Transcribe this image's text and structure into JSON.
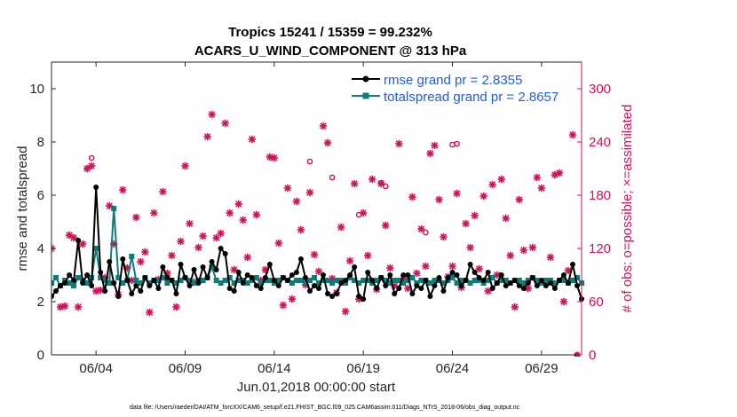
{
  "chart_data": {
    "type": "line",
    "title_line1": "Tropics 15241 / 15359 = 99.232%",
    "title_line2": "ACARS_U_WIND_COMPONENT @ 313 hPa",
    "xlabel": "Jun.01,2018 00:00:00 start",
    "ylabel_left": "rmse and totalspread",
    "ylabel_right": "# of obs: o=possible; ×=assimilated",
    "footnote": "data file: /Users/raeder/DAI/ATM_forcXX/CAM6_setup/f.e21.FHIST_BGC.f09_025.CAM6assim.011/Diags_NTrS_2018-06/obs_diag_output.nc",
    "xlim": [
      1.5,
      31.25
    ],
    "ylim_left": [
      0,
      11
    ],
    "ylim_right": [
      0,
      330
    ],
    "x_ticks": [
      {
        "x": 4,
        "label": "06/04"
      },
      {
        "x": 9,
        "label": "06/09"
      },
      {
        "x": 14,
        "label": "06/14"
      },
      {
        "x": 19,
        "label": "06/19"
      },
      {
        "x": 24,
        "label": "06/24"
      },
      {
        "x": 29,
        "label": "06/29"
      }
    ],
    "y_ticks_left": [
      "0",
      "2",
      "4",
      "6",
      "8",
      "10"
    ],
    "y_ticks_right": [
      "0",
      "60",
      "120",
      "180",
      "240",
      "300"
    ],
    "colors": {
      "rmse": "#000000",
      "spread": "#0b7d7b",
      "obs": "#d1105a",
      "legend_text": "#1f5fd6"
    },
    "series": [
      {
        "name": "rmse grand pr = 2.8355",
        "x": [
          1.5,
          1.75,
          2.0,
          2.25,
          2.5,
          2.75,
          3.0,
          3.25,
          3.5,
          3.75,
          4.0,
          4.25,
          4.5,
          4.75,
          5.0,
          5.25,
          5.5,
          5.75,
          6.0,
          6.25,
          6.5,
          6.75,
          7.0,
          7.25,
          7.5,
          7.75,
          8.0,
          8.25,
          8.5,
          8.75,
          9.0,
          9.25,
          9.5,
          9.75,
          10.0,
          10.25,
          10.5,
          10.75,
          11.0,
          11.25,
          11.5,
          11.75,
          12.0,
          12.25,
          12.5,
          12.75,
          13.0,
          13.25,
          13.5,
          13.75,
          14.0,
          14.25,
          14.5,
          14.75,
          15.0,
          15.25,
          15.5,
          15.75,
          16.0,
          16.25,
          16.5,
          16.75,
          17.0,
          17.25,
          17.5,
          17.75,
          18.0,
          18.25,
          18.5,
          18.75,
          19.0,
          19.25,
          19.5,
          19.75,
          20.0,
          20.25,
          20.5,
          20.75,
          21.0,
          21.25,
          21.5,
          21.75,
          22.0,
          22.25,
          22.5,
          22.75,
          23.0,
          23.25,
          23.5,
          23.75,
          24.0,
          24.25,
          24.5,
          24.75,
          25.0,
          25.25,
          25.5,
          25.75,
          26.0,
          26.25,
          26.5,
          26.75,
          27.0,
          27.25,
          27.5,
          27.75,
          28.0,
          28.25,
          28.5,
          28.75,
          29.0,
          29.25,
          29.5,
          29.75,
          30.0,
          30.25,
          30.5,
          30.75,
          31.0,
          31.25
        ],
        "values": [
          2.2,
          2.4,
          2.6,
          2.7,
          3.0,
          2.8,
          4.3,
          2.7,
          3.0,
          2.6,
          6.3,
          3.1,
          2.4,
          3.5,
          2.7,
          2.2,
          3.6,
          2.8,
          2.3,
          2.6,
          2.4,
          2.9,
          2.6,
          2.8,
          2.5,
          3.3,
          2.9,
          2.8,
          2.3,
          3.4,
          2.9,
          2.6,
          3.2,
          2.7,
          3.3,
          2.9,
          3.5,
          3.2,
          4.0,
          3.8,
          2.5,
          2.4,
          3.1,
          2.7,
          3.0,
          2.9,
          2.6,
          2.5,
          2.9,
          3.4,
          2.8,
          2.6,
          2.9,
          2.8,
          3.0,
          3.1,
          3.6,
          2.9,
          2.4,
          2.6,
          2.5,
          3.0,
          2.3,
          2.2,
          2.3,
          2.7,
          2.8,
          3.0,
          3.3,
          2.2,
          2.1,
          3.1,
          2.8,
          2.5,
          2.9,
          2.6,
          3.0,
          2.3,
          2.5,
          3.0,
          3.0,
          2.3,
          2.6,
          2.5,
          2.8,
          2.2,
          2.6,
          2.9,
          2.4,
          2.9,
          3.1,
          3.0,
          2.6,
          2.8,
          3.4,
          3.1,
          2.9,
          2.8,
          3.1,
          2.5,
          2.7,
          3.0,
          2.6,
          2.7,
          2.8,
          2.6,
          2.5,
          2.7,
          2.9,
          2.6,
          2.8,
          2.6,
          2.7,
          2.5,
          2.8,
          3.0,
          2.7,
          3.4,
          2.6,
          2.1
        ]
      },
      {
        "name": "totalspread grand pr = 2.8657",
        "x": [
          1.5,
          1.75,
          2.0,
          2.25,
          2.5,
          2.75,
          3.0,
          3.25,
          3.5,
          3.75,
          4.0,
          4.25,
          4.5,
          4.75,
          5.0,
          5.25,
          5.5,
          5.75,
          6.0,
          6.25,
          6.5,
          6.75,
          7.0,
          7.25,
          7.5,
          7.75,
          8.0,
          8.25,
          8.5,
          8.75,
          9.0,
          9.25,
          9.5,
          9.75,
          10.0,
          10.25,
          10.5,
          10.75,
          11.0,
          11.25,
          11.5,
          11.75,
          12.0,
          12.25,
          12.5,
          12.75,
          13.0,
          13.25,
          13.5,
          13.75,
          14.0,
          14.25,
          14.5,
          14.75,
          15.0,
          15.25,
          15.5,
          15.75,
          16.0,
          16.25,
          16.5,
          16.75,
          17.0,
          17.25,
          17.5,
          17.75,
          18.0,
          18.25,
          18.5,
          18.75,
          19.0,
          19.25,
          19.5,
          19.75,
          20.0,
          20.25,
          20.5,
          20.75,
          21.0,
          21.25,
          21.5,
          21.75,
          22.0,
          22.25,
          22.5,
          22.75,
          23.0,
          23.25,
          23.5,
          23.75,
          24.0,
          24.25,
          24.5,
          24.75,
          25.0,
          25.25,
          25.5,
          25.75,
          26.0,
          26.25,
          26.5,
          26.75,
          27.0,
          27.25,
          27.5,
          27.75,
          28.0,
          28.25,
          28.5,
          28.75,
          29.0,
          29.25,
          29.5,
          29.75,
          30.0,
          30.25,
          30.5,
          30.75,
          31.0,
          31.25
        ],
        "values": [
          2.7,
          2.9,
          2.6,
          2.8,
          2.7,
          2.6,
          2.9,
          2.8,
          2.7,
          2.9,
          4.0,
          2.9,
          2.8,
          2.7,
          5.5,
          2.9,
          2.7,
          2.8,
          3.7,
          2.8,
          2.7,
          2.9,
          2.7,
          2.8,
          2.8,
          2.9,
          2.7,
          2.8,
          2.7,
          2.8,
          2.9,
          2.8,
          2.7,
          2.8,
          2.8,
          2.9,
          3.3,
          2.8,
          2.7,
          2.8,
          2.9,
          2.7,
          2.8,
          2.8,
          2.7,
          2.8,
          2.9,
          2.7,
          2.8,
          2.8,
          2.7,
          2.8,
          2.9,
          2.8,
          2.7,
          2.8,
          2.8,
          2.7,
          2.8,
          2.9,
          2.7,
          2.8,
          2.8,
          2.7,
          2.8,
          2.8,
          2.7,
          2.9,
          2.8,
          2.7,
          2.8,
          2.8,
          2.7,
          2.8,
          2.9,
          2.8,
          2.7,
          2.8,
          2.8,
          2.7,
          2.8,
          2.9,
          2.7,
          2.8,
          2.8,
          2.7,
          2.8,
          2.8,
          2.7,
          2.8,
          2.9,
          2.7,
          2.8,
          2.8,
          2.7,
          2.8,
          2.8,
          2.7,
          2.8,
          2.9,
          2.7,
          2.8,
          2.8,
          2.7,
          2.8,
          2.8,
          2.7,
          2.8,
          2.9,
          2.8,
          2.7,
          2.8,
          2.8,
          2.7,
          2.8,
          2.8,
          2.7,
          2.8,
          2.9,
          2.7
        ]
      }
    ],
    "obs_possible": [
      [
        1.5,
        120
      ],
      [
        2.0,
        54
      ],
      [
        2.25,
        55
      ],
      [
        2.5,
        135
      ],
      [
        2.75,
        132
      ],
      [
        3.0,
        54
      ],
      [
        3.25,
        125
      ],
      [
        3.5,
        210
      ],
      [
        3.75,
        213
      ],
      [
        4.0,
        72
      ],
      [
        4.25,
        73
      ],
      [
        4.5,
        87
      ],
      [
        4.75,
        168
      ],
      [
        5.0,
        125
      ],
      [
        5.25,
        68
      ],
      [
        5.5,
        186
      ],
      [
        5.75,
        98
      ],
      [
        6.0,
        84
      ],
      [
        6.25,
        155
      ],
      [
        6.5,
        105
      ],
      [
        6.75,
        116
      ],
      [
        7.0,
        48
      ],
      [
        7.25,
        160
      ],
      [
        7.5,
        85
      ],
      [
        7.75,
        184
      ],
      [
        8.0,
        92
      ],
      [
        8.25,
        112
      ],
      [
        8.5,
        54
      ],
      [
        8.75,
        128
      ],
      [
        9.0,
        213
      ],
      [
        9.25,
        148
      ],
      [
        9.5,
        82
      ],
      [
        9.75,
        121
      ],
      [
        10.0,
        134
      ],
      [
        10.25,
        246
      ],
      [
        10.5,
        271
      ],
      [
        10.75,
        132
      ],
      [
        11.0,
        137
      ],
      [
        11.25,
        261
      ],
      [
        11.5,
        160
      ],
      [
        11.75,
        96
      ],
      [
        12.0,
        170
      ],
      [
        12.25,
        152
      ],
      [
        12.5,
        110
      ],
      [
        12.75,
        243
      ],
      [
        13.0,
        158
      ],
      [
        13.25,
        84
      ],
      [
        13.5,
        96
      ],
      [
        13.75,
        223
      ],
      [
        14.0,
        222
      ],
      [
        14.25,
        126
      ],
      [
        14.5,
        56
      ],
      [
        14.75,
        188
      ],
      [
        15.0,
        63
      ],
      [
        15.25,
        173
      ],
      [
        15.5,
        141
      ],
      [
        15.75,
        79
      ],
      [
        16.0,
        183
      ],
      [
        16.25,
        113
      ],
      [
        16.5,
        94
      ],
      [
        16.75,
        258
      ],
      [
        17.0,
        239
      ],
      [
        17.25,
        86
      ],
      [
        17.5,
        70
      ],
      [
        17.75,
        144
      ],
      [
        18.0,
        49
      ],
      [
        18.25,
        106
      ],
      [
        18.5,
        193
      ],
      [
        18.75,
        63
      ],
      [
        19.0,
        160
      ],
      [
        19.25,
        112
      ],
      [
        19.5,
        198
      ],
      [
        19.75,
        74
      ],
      [
        20.0,
        193
      ],
      [
        20.25,
        146
      ],
      [
        20.5,
        98
      ],
      [
        20.75,
        78
      ],
      [
        21.0,
        238
      ],
      [
        21.25,
        86
      ],
      [
        21.5,
        75
      ],
      [
        21.75,
        178
      ],
      [
        22.0,
        92
      ],
      [
        22.25,
        142
      ],
      [
        22.5,
        100
      ],
      [
        22.75,
        227
      ],
      [
        23.0,
        236
      ],
      [
        23.25,
        175
      ],
      [
        23.5,
        133
      ],
      [
        23.75,
        88
      ],
      [
        24.0,
        100
      ],
      [
        24.25,
        182
      ],
      [
        24.5,
        76
      ],
      [
        24.75,
        148
      ],
      [
        25.0,
        121
      ],
      [
        25.25,
        157
      ],
      [
        25.5,
        97
      ],
      [
        25.75,
        179
      ],
      [
        26.0,
        72
      ],
      [
        26.25,
        192
      ],
      [
        26.5,
        90
      ],
      [
        26.75,
        198
      ],
      [
        27.0,
        154
      ],
      [
        27.25,
        112
      ],
      [
        27.5,
        54
      ],
      [
        27.75,
        175
      ],
      [
        28.0,
        118
      ],
      [
        28.25,
        75
      ],
      [
        28.5,
        121
      ],
      [
        28.75,
        200
      ],
      [
        29.0,
        188
      ],
      [
        29.25,
        82
      ],
      [
        29.5,
        110
      ],
      [
        29.75,
        203
      ],
      [
        30.0,
        205
      ],
      [
        30.25,
        60
      ],
      [
        30.5,
        95
      ],
      [
        30.75,
        248
      ]
    ],
    "obs_circles": [
      [
        3.75,
        222
      ],
      [
        17.25,
        200
      ],
      [
        18.75,
        158
      ],
      [
        20.0,
        194
      ],
      [
        20.25,
        190
      ],
      [
        16.0,
        218
      ],
      [
        22.5,
        138
      ],
      [
        24.0,
        237
      ],
      [
        24.25,
        238
      ]
    ],
    "obs_zero": [
      [
        31.0,
        0
      ]
    ]
  }
}
